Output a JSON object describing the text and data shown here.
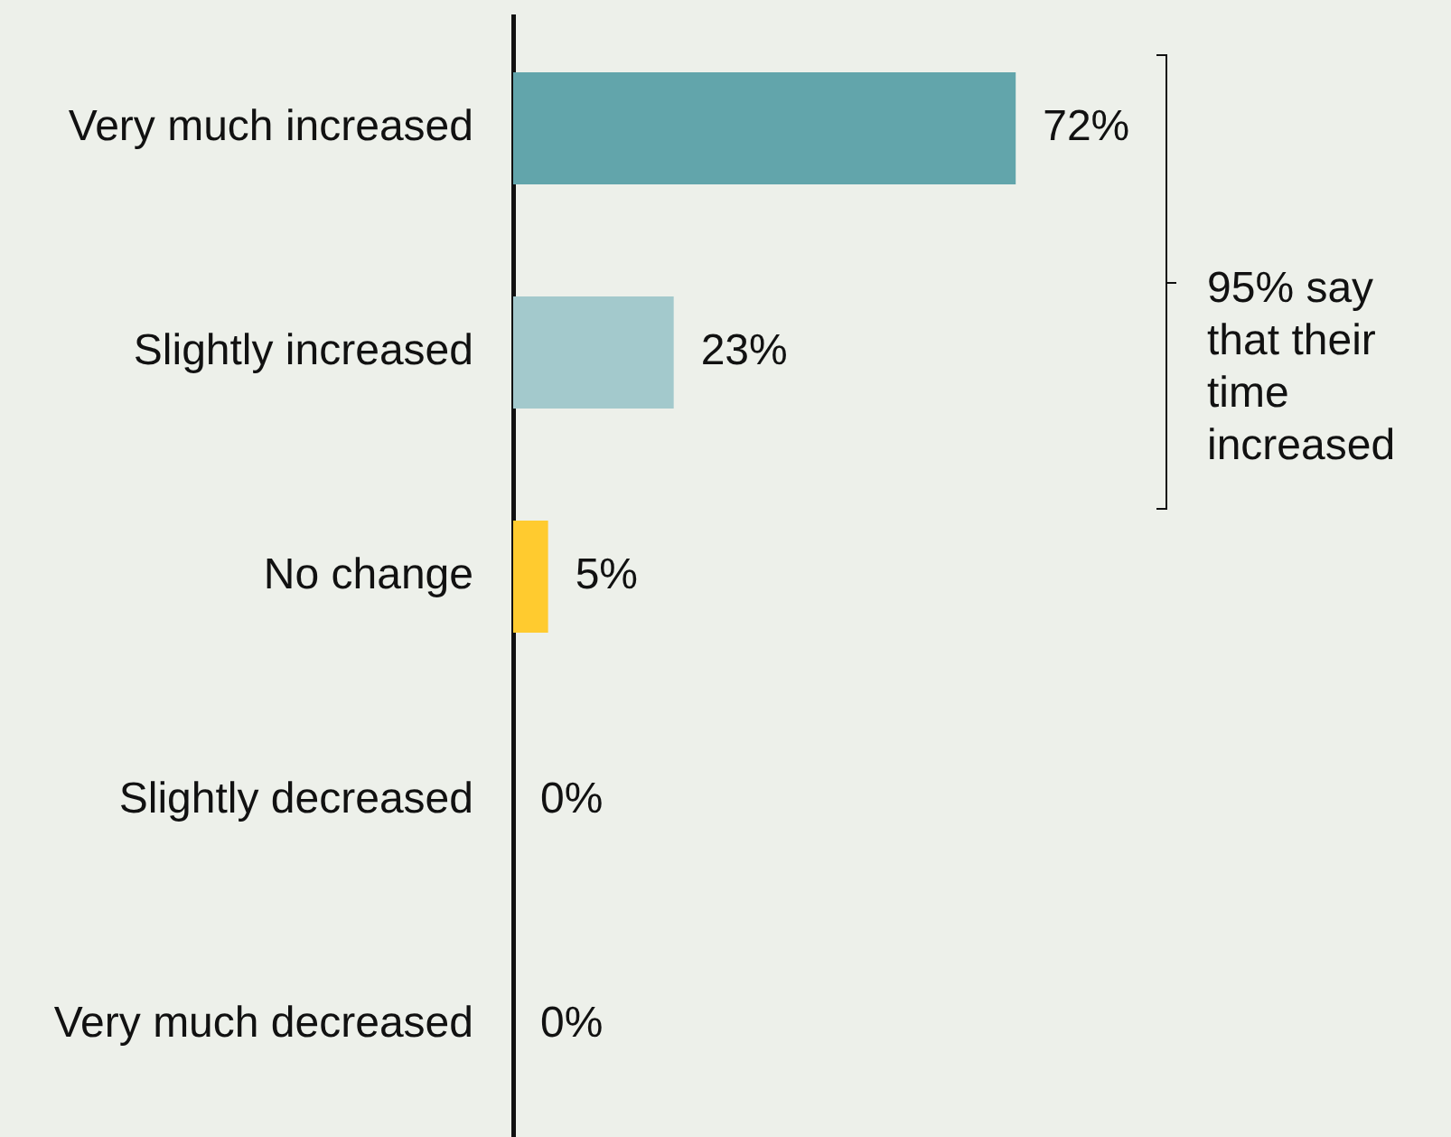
{
  "chart_data": {
    "type": "bar",
    "orientation": "horizontal",
    "categories": [
      "Very much increased",
      "Slightly increased",
      "No change",
      "Slightly decreased",
      "Very much decreased"
    ],
    "values": [
      72,
      23,
      5,
      0,
      0
    ],
    "colors": [
      "#62a5ab",
      "#a3c9cc",
      "#ffcb2f",
      null,
      null
    ],
    "value_labels": [
      "72%",
      "23%",
      "5%",
      "0%",
      "0%"
    ],
    "annotations": [
      "95% say that their time increased"
    ],
    "tick_labels": "y"
  }
}
